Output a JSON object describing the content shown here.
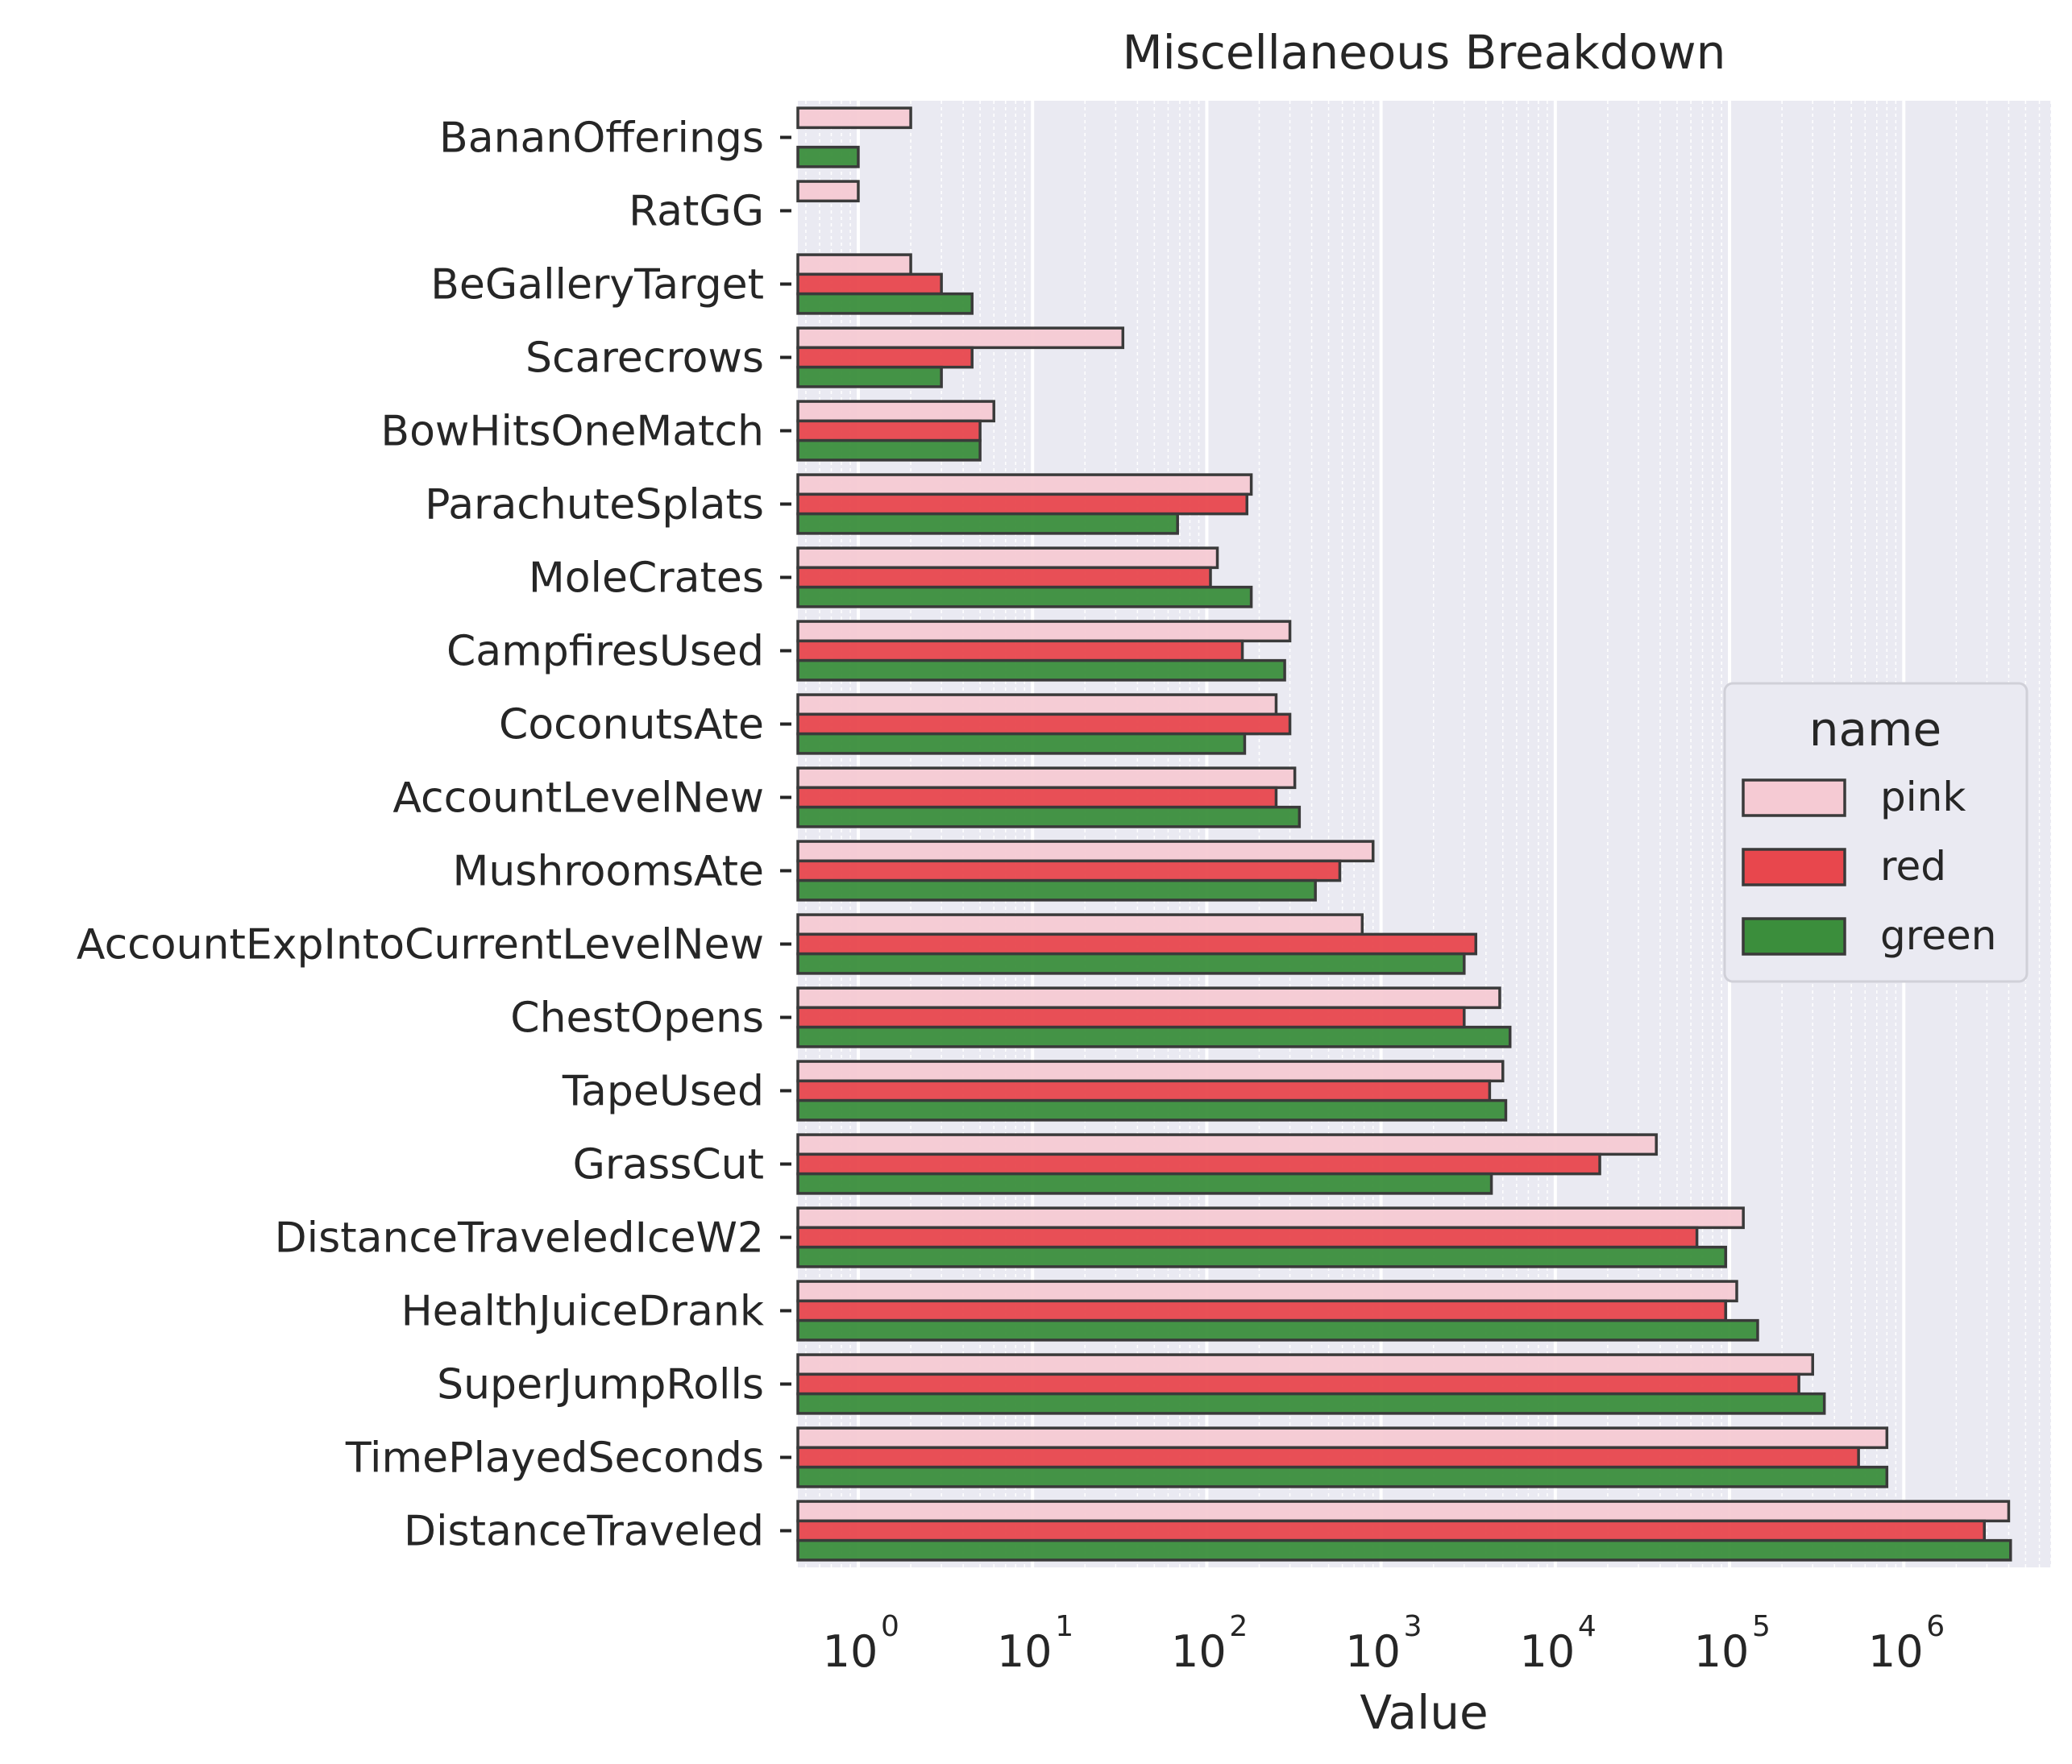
{
  "chart_data": {
    "type": "bar",
    "orientation": "horizontal",
    "title": "Miscellaneous Breakdown",
    "xlabel": "Value",
    "ylabel": "",
    "xscale": "log",
    "xlim": [
      0.45,
      7000000
    ],
    "xticks": [
      {
        "value": 1,
        "base": "10",
        "exp": "0"
      },
      {
        "value": 10,
        "base": "10",
        "exp": "1"
      },
      {
        "value": 100,
        "base": "10",
        "exp": "2"
      },
      {
        "value": 1000,
        "base": "10",
        "exp": "3"
      },
      {
        "value": 10000,
        "base": "10",
        "exp": "4"
      },
      {
        "value": 100000,
        "base": "10",
        "exp": "5"
      },
      {
        "value": 1000000,
        "base": "10",
        "exp": "6"
      }
    ],
    "grid": true,
    "legend": {
      "title": "name",
      "position": "center-right"
    },
    "categories": [
      "BananOfferings",
      "RatGG",
      "BeGalleryTarget",
      "Scarecrows",
      "BowHitsOneMatch",
      "ParachuteSplats",
      "MoleCrates",
      "CampfiresUsed",
      "CoconutsAte",
      "AccountLevelNew",
      "MushroomsAte",
      "AccountExpIntoCurrentLevelNew",
      "ChestOpens",
      "TapeUsed",
      "GrassCut",
      "DistanceTraveledIceW2",
      "HealthJuiceDrank",
      "SuperJumpRolls",
      "TimePlayedSeconds",
      "DistanceTraveled"
    ],
    "series": [
      {
        "name": "pink",
        "color": "#f5cad3",
        "values": [
          2,
          1,
          2,
          33,
          6,
          180,
          115,
          300,
          250,
          320,
          900,
          780,
          4800,
          5000,
          38000,
          120000,
          110000,
          300000,
          800000,
          4000000
        ]
      },
      {
        "name": "red",
        "color": "#e8474d",
        "values": [
          null,
          null,
          3,
          4.5,
          5,
          170,
          105,
          160,
          300,
          250,
          580,
          3500,
          3000,
          4200,
          18000,
          65000,
          95000,
          250000,
          550000,
          2900000
        ]
      },
      {
        "name": "green",
        "color": "#3b8e3c",
        "values": [
          1,
          null,
          4.5,
          3,
          5,
          68,
          180,
          280,
          165,
          340,
          420,
          3000,
          5500,
          5200,
          4300,
          95000,
          145000,
          350000,
          800000,
          4100000
        ]
      }
    ]
  }
}
